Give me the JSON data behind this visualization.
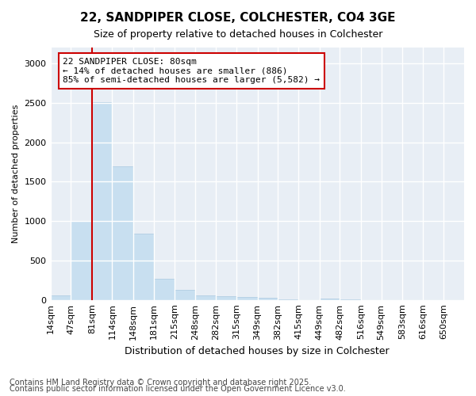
{
  "title1": "22, SANDPIPER CLOSE, COLCHESTER, CO4 3GE",
  "title2": "Size of property relative to detached houses in Colchester",
  "xlabel": "Distribution of detached houses by size in Colchester",
  "ylabel": "Number of detached properties",
  "footnote1": "Contains HM Land Registry data © Crown copyright and database right 2025.",
  "footnote2": "Contains public sector information licensed under the Open Government Licence v3.0.",
  "annotation_line1": "22 SANDPIPER CLOSE: 80sqm",
  "annotation_line2": "← 14% of detached houses are smaller (886)",
  "annotation_line3": "85% of semi-detached houses are larger (5,582) →",
  "bar_color": "#c8dff0",
  "bar_edge_color": "#aac8e0",
  "vline_color": "#cc0000",
  "vline_x": 81,
  "bin_edges": [
    14,
    47,
    81,
    114,
    148,
    181,
    215,
    248,
    282,
    315,
    349,
    382,
    415,
    449,
    482,
    516,
    549,
    583,
    616,
    650,
    683
  ],
  "bar_heights": [
    55,
    1000,
    2510,
    1690,
    840,
    270,
    130,
    55,
    48,
    38,
    28,
    5,
    0,
    18,
    4,
    0,
    0,
    0,
    0,
    0
  ],
  "ylim": [
    0,
    3200
  ],
  "yticks": [
    0,
    500,
    1000,
    1500,
    2000,
    2500,
    3000
  ],
  "fig_bg": "#ffffff",
  "plot_bg": "#e8eef5",
  "grid_color": "#ffffff",
  "annotation_box_facecolor": "#ffffff",
  "annotation_box_edgecolor": "#cc0000",
  "title_fontsize": 11,
  "subtitle_fontsize": 9,
  "ylabel_fontsize": 8,
  "xlabel_fontsize": 9,
  "tick_fontsize": 8,
  "annot_fontsize": 8,
  "footnote_fontsize": 7
}
